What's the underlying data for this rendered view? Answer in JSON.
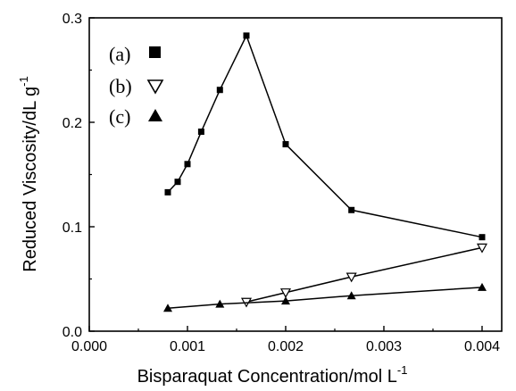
{
  "chart_data": {
    "type": "line",
    "title": "",
    "xlabel": "Bisparaquat Concentration/mol L",
    "xlabel_sup": "-1",
    "ylabel": "Reduced Viscosity/dL g",
    "ylabel_sup": "-1",
    "xlim": [
      0.0,
      0.0042
    ],
    "ylim": [
      0.0,
      0.3
    ],
    "x_ticks": [
      0.0,
      0.001,
      0.002,
      0.003,
      0.004
    ],
    "x_tick_labels": [
      "0.000",
      "0.001",
      "0.002",
      "0.003",
      "0.004"
    ],
    "y_ticks": [
      0.0,
      0.1,
      0.2,
      0.3
    ],
    "y_tick_labels": [
      "0.0",
      "0.1",
      "0.2",
      "0.3"
    ],
    "grid": false,
    "legend_position": "top-left",
    "series": [
      {
        "name": "(a)",
        "marker": "filled-square",
        "x": [
          0.0008,
          0.0009,
          0.001,
          0.00114,
          0.00133,
          0.0016,
          0.002,
          0.00267,
          0.004
        ],
        "y": [
          0.133,
          0.143,
          0.16,
          0.191,
          0.231,
          0.283,
          0.179,
          0.116,
          0.09
        ]
      },
      {
        "name": "(b)",
        "marker": "open-down-triangle",
        "x": [
          0.0016,
          0.002,
          0.00267,
          0.004
        ],
        "y": [
          0.028,
          0.037,
          0.052,
          0.08
        ]
      },
      {
        "name": "(c)",
        "marker": "filled-up-triangle",
        "x": [
          0.0008,
          0.00133,
          0.002,
          0.00267,
          0.004
        ],
        "y": [
          0.022,
          0.026,
          0.029,
          0.034,
          0.042
        ]
      }
    ]
  }
}
